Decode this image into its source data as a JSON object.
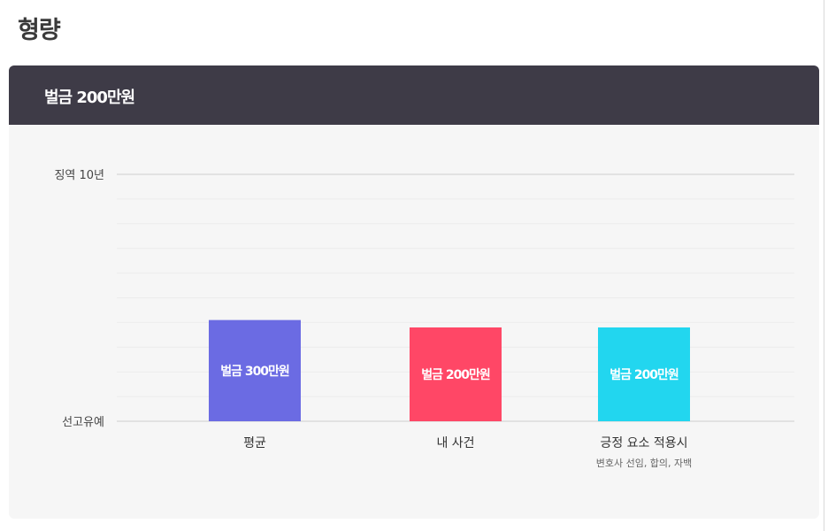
{
  "page": {
    "title": "형량"
  },
  "card": {
    "header": "벌금 200만원"
  },
  "chart_data": {
    "type": "bar",
    "y_ticks": [
      "선고유예",
      "징역 10년"
    ],
    "categories": [
      "평균",
      "내 사건",
      "긍정 요소 적용시"
    ],
    "category_notes": [
      "",
      "",
      "변호사 선임, 합의, 자백"
    ],
    "bar_labels": [
      "벌금 300만원",
      "벌금 200만원",
      "벌금 200만원"
    ],
    "values": [
      0.41,
      0.38,
      0.38
    ],
    "ylim": [
      0,
      1
    ],
    "colors": [
      "#6b6be3",
      "#ff4766",
      "#22d6ef"
    ],
    "grid": true,
    "gridlines": 10
  }
}
